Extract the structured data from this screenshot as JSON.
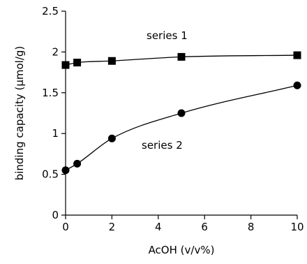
{
  "chart_data": {
    "type": "line",
    "xlabel": "AcOH (v/v%)",
    "ylabel": "binding capacity (μmol/g)",
    "xlim": [
      0,
      10
    ],
    "ylim": [
      0,
      2.5
    ],
    "xticks": [
      "0",
      "2",
      "4",
      "6",
      "8",
      "10"
    ],
    "yticks": [
      "0",
      "0.5",
      "1",
      "1.5",
      "2",
      "2.5"
    ],
    "grid": false,
    "series": [
      {
        "name": "series 1",
        "marker": "square",
        "color": "#000000",
        "x": [
          0,
          0.5,
          2,
          5,
          10
        ],
        "y": [
          1.84,
          1.87,
          1.89,
          1.94,
          1.96
        ]
      },
      {
        "name": "series 2",
        "marker": "circle",
        "color": "#000000",
        "x": [
          0,
          0.5,
          2,
          5,
          10
        ],
        "y": [
          0.55,
          0.63,
          0.94,
          1.25,
          1.59
        ]
      }
    ]
  }
}
